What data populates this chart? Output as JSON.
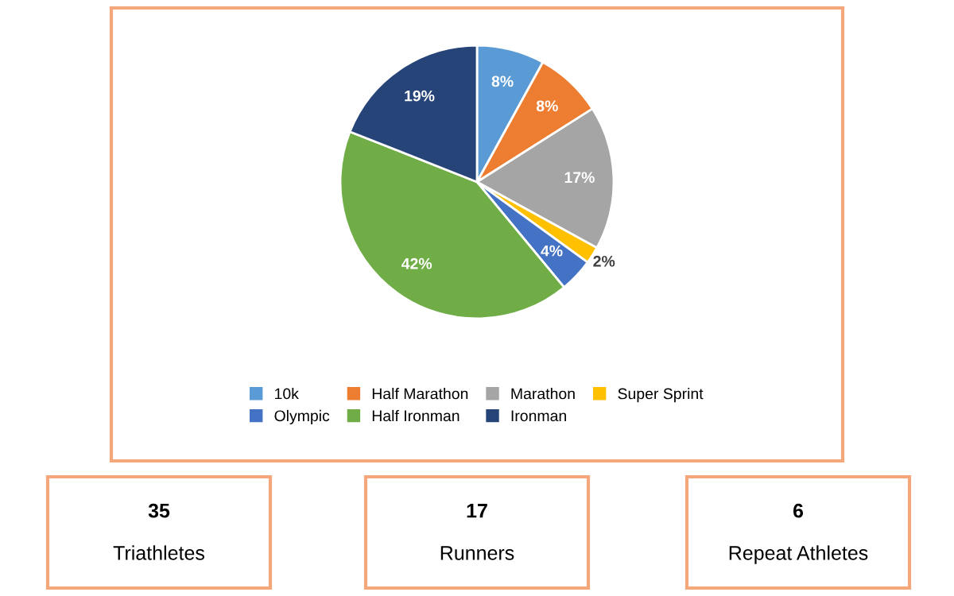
{
  "chart_data": [
    {
      "type": "pie",
      "categories": [
        "10k",
        "Half Marathon",
        "Marathon",
        "Super Sprint",
        "Olympic",
        "Half Ironman",
        "Ironman"
      ],
      "values": [
        8,
        8,
        17,
        2,
        4,
        42,
        19
      ],
      "colors": [
        "#5b9bd5",
        "#ed7d31",
        "#a5a5a5",
        "#ffc000",
        "#4472c4",
        "#70ad47",
        "#264478"
      ],
      "value_labels": [
        "8%",
        "8%",
        "17%",
        "2%",
        "4%",
        "42%",
        "19%"
      ],
      "legend": "bottom"
    },
    {
      "type": "other",
      "annotations": [
        "35",
        "Triathletes"
      ]
    },
    {
      "type": "other",
      "annotations": [
        "17",
        "Runners"
      ]
    },
    {
      "type": "other",
      "annotations": [
        "6",
        "Repeat Athletes"
      ]
    }
  ]
}
